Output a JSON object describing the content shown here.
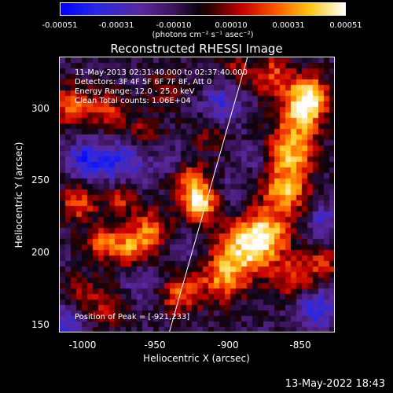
{
  "colorbar": {
    "ticks": [
      "-0.00051",
      "-0.00031",
      "-0.00010",
      "0.00010",
      "0.00031",
      "0.00051"
    ],
    "units": "(photons cm⁻² s⁻¹ asec⁻²)"
  },
  "chart_data": {
    "type": "heatmap",
    "title": "Reconstructed RHESSI Image",
    "xlabel": "Heliocentric X (arcsec)",
    "ylabel": "Heliocentric Y (arcsec)",
    "xlim": [
      -1018,
      -828
    ],
    "ylim": [
      143,
      333
    ],
    "xticks": [
      "-1000",
      "-950",
      "-900",
      "-850"
    ],
    "yticks": [
      "150",
      "200",
      "250",
      "300"
    ],
    "color_range": [
      -0.00051,
      0.00051
    ],
    "peak": [
      -921,
      233
    ],
    "limb_line": [
      [
        -942,
        143
      ],
      [
        -888,
        333
      ]
    ],
    "annotations": [
      "11-May-2013 02:31:40.000 to 02:37:40.000",
      "Detectors: 3F 4F 5F 6F 7F 8F, Att 0",
      "Energy Range: 12.0 - 25.0 keV",
      "Clean    Total counts: 1.06E+04"
    ],
    "peak_label": "Position of Peak = [-921,233]",
    "hotspots": [
      {
        "x": -921,
        "y": 233,
        "v": 0.00051,
        "s": 9
      },
      {
        "x": -930,
        "y": 250,
        "v": 0.0003,
        "s": 10
      },
      {
        "x": -890,
        "y": 200,
        "v": 0.00042,
        "s": 14
      },
      {
        "x": -875,
        "y": 210,
        "v": 0.0004,
        "s": 12
      },
      {
        "x": -862,
        "y": 240,
        "v": 0.00044,
        "s": 11
      },
      {
        "x": -858,
        "y": 268,
        "v": 0.00045,
        "s": 12
      },
      {
        "x": -850,
        "y": 295,
        "v": 0.00044,
        "s": 11
      },
      {
        "x": -845,
        "y": 308,
        "v": 0.0004,
        "s": 9
      },
      {
        "x": -870,
        "y": 320,
        "v": 0.0003,
        "s": 10
      },
      {
        "x": -855,
        "y": 180,
        "v": 0.0003,
        "s": 10
      },
      {
        "x": -835,
        "y": 190,
        "v": 0.00024,
        "s": 8
      },
      {
        "x": -905,
        "y": 180,
        "v": 0.00035,
        "s": 11
      },
      {
        "x": -935,
        "y": 170,
        "v": 0.00032,
        "s": 10
      },
      {
        "x": -968,
        "y": 200,
        "v": 0.00036,
        "s": 10
      },
      {
        "x": -988,
        "y": 205,
        "v": 0.0003,
        "s": 9
      },
      {
        "x": -955,
        "y": 215,
        "v": 0.00032,
        "s": 9
      },
      {
        "x": -1005,
        "y": 232,
        "v": 0.0003,
        "s": 9
      },
      {
        "x": -975,
        "y": 236,
        "v": 0.00026,
        "s": 8
      },
      {
        "x": -1010,
        "y": 300,
        "v": 0.00032,
        "s": 10
      },
      {
        "x": -985,
        "y": 296,
        "v": 0.00025,
        "s": 9
      },
      {
        "x": -1002,
        "y": 170,
        "v": 0.0002,
        "s": 9
      },
      {
        "x": -960,
        "y": 280,
        "v": 0.00018,
        "s": 10
      },
      {
        "x": -945,
        "y": 310,
        "v": 0.00016,
        "s": 9
      },
      {
        "x": -915,
        "y": 280,
        "v": 0.00014,
        "s": 10
      },
      {
        "x": -985,
        "y": 160,
        "v": 0.00018,
        "s": 9
      },
      {
        "x": -895,
        "y": 325,
        "v": 0.0002,
        "s": 7
      },
      {
        "x": -975,
        "y": 260,
        "v": -0.00028,
        "s": 12
      },
      {
        "x": -940,
        "y": 260,
        "v": -0.0002,
        "s": 9
      },
      {
        "x": -1000,
        "y": 262,
        "v": -0.0003,
        "s": 9
      },
      {
        "x": -905,
        "y": 300,
        "v": -0.00025,
        "s": 10
      },
      {
        "x": -960,
        "y": 180,
        "v": -0.0002,
        "s": 9
      },
      {
        "x": -840,
        "y": 160,
        "v": -0.0003,
        "s": 10
      },
      {
        "x": -835,
        "y": 220,
        "v": -0.00022,
        "s": 8
      },
      {
        "x": -1012,
        "y": 150,
        "v": -0.00025,
        "s": 8
      },
      {
        "x": -930,
        "y": 200,
        "v": -0.00015,
        "s": 7
      },
      {
        "x": -880,
        "y": 265,
        "v": -0.00018,
        "s": 7
      },
      {
        "x": -900,
        "y": 240,
        "v": -0.0001,
        "s": 8
      }
    ]
  },
  "footer": {
    "timestamp": "13-May-2022 18:43"
  }
}
